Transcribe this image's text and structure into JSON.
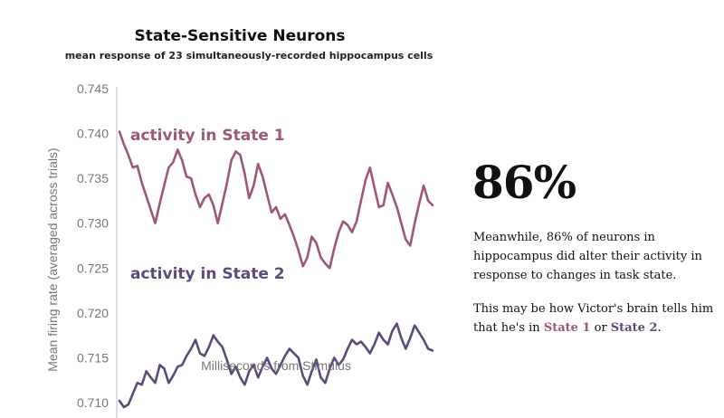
{
  "chart_data": {
    "type": "line",
    "title": "State-Sensitive Neurons",
    "subtitle": "mean response of 23 simultaneously-recorded hippocampus cells",
    "xlabel": "Milliseconds from Stimulus",
    "ylabel": "Mean firing rate (averaged across trials)",
    "ylim": [
      0.709,
      0.745
    ],
    "yticks": [
      "0.710",
      "0.715",
      "0.720",
      "0.725",
      "0.730",
      "0.735",
      "0.740",
      "0.745"
    ],
    "grid": false,
    "x": [
      0,
      1,
      2,
      3,
      4,
      5,
      6,
      7,
      8,
      9,
      10,
      11,
      12,
      13,
      14,
      15,
      16,
      17,
      18,
      19,
      20,
      21,
      22,
      23,
      24,
      25,
      26,
      27,
      28,
      29,
      30,
      31,
      32,
      33,
      34,
      35,
      36,
      37,
      38,
      39,
      40,
      41,
      42,
      43,
      44,
      45,
      46,
      47,
      48,
      49,
      50,
      51,
      52,
      53,
      54,
      55,
      56,
      57,
      58,
      59,
      60,
      61,
      62,
      63,
      64,
      65,
      66,
      67,
      68,
      69,
      70
    ],
    "series": [
      {
        "name": "activity in State 1",
        "color": "#a0586e",
        "values": [
          0.7402,
          0.7388,
          0.7376,
          0.7362,
          0.7364,
          0.7345,
          0.733,
          0.7315,
          0.73,
          0.7322,
          0.7342,
          0.7362,
          0.7368,
          0.7382,
          0.737,
          0.7352,
          0.735,
          0.7332,
          0.7318,
          0.7328,
          0.7332,
          0.732,
          0.73,
          0.7322,
          0.7344,
          0.737,
          0.738,
          0.7376,
          0.7355,
          0.7328,
          0.7342,
          0.7366,
          0.7352,
          0.7332,
          0.7312,
          0.7318,
          0.7305,
          0.731,
          0.7298,
          0.7285,
          0.727,
          0.7252,
          0.7262,
          0.7285,
          0.7278,
          0.7262,
          0.7255,
          0.725,
          0.7272,
          0.729,
          0.7302,
          0.7298,
          0.729,
          0.7302,
          0.7325,
          0.7348,
          0.7362,
          0.734,
          0.7318,
          0.732,
          0.7345,
          0.7332,
          0.7318,
          0.73,
          0.7282,
          0.7275,
          0.73,
          0.7322,
          0.7342,
          0.7325,
          0.732
        ]
      },
      {
        "name": "activity in State 2",
        "color": "#5e4a7a",
        "values": [
          0.7102,
          0.7095,
          0.7098,
          0.711,
          0.7122,
          0.712,
          0.7135,
          0.7128,
          0.7122,
          0.7142,
          0.7138,
          0.7122,
          0.713,
          0.714,
          0.7142,
          0.7152,
          0.716,
          0.717,
          0.7155,
          0.7152,
          0.7162,
          0.7175,
          0.7168,
          0.7162,
          0.7148,
          0.7132,
          0.714,
          0.7128,
          0.712,
          0.7135,
          0.7142,
          0.7128,
          0.714,
          0.715,
          0.7138,
          0.7132,
          0.7142,
          0.7152,
          0.716,
          0.7155,
          0.715,
          0.713,
          0.712,
          0.7135,
          0.7148,
          0.7128,
          0.7122,
          0.7138,
          0.715,
          0.7142,
          0.7148,
          0.716,
          0.717,
          0.7165,
          0.7168,
          0.7162,
          0.7155,
          0.7165,
          0.7178,
          0.717,
          0.7165,
          0.718,
          0.7188,
          0.7172,
          0.716,
          0.7172,
          0.7186,
          0.7178,
          0.717,
          0.716,
          0.7158
        ]
      }
    ]
  },
  "callout": {
    "big_number": "86%",
    "text_1": "Meanwhile, 86% of neurons in hippocampus did alter their activity in response to changes in task state.",
    "text_2_before": "This may be how Victor's brain tells him that he's in ",
    "state1": "State 1",
    "text_2_middle": " or ",
    "state2": "State 2",
    "text_2_after": "."
  }
}
